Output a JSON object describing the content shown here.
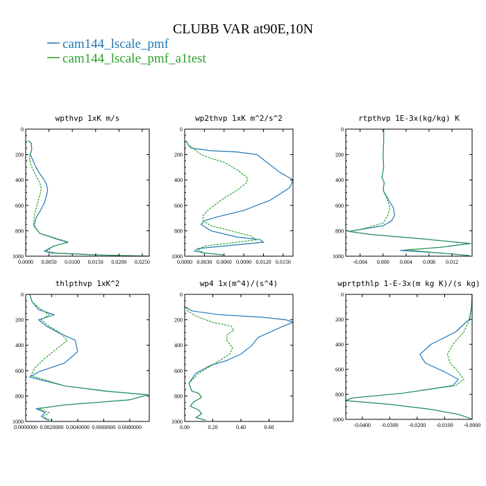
{
  "title": "CLUBB VAR at90E,10N",
  "colors": {
    "blue": "#1f77b4",
    "green": "#2ca02c"
  },
  "legend": [
    {
      "label": "cam144_lscale_pmf",
      "color": "#1f77b4"
    },
    {
      "label": "cam144_lscale_pmf_a1test",
      "color": "#2ca02c"
    }
  ],
  "chart_data": [
    {
      "type": "line",
      "title": "wpthvp  1xK m/s",
      "xlim": [
        0,
        0.0265
      ],
      "ylim": [
        1000,
        0
      ],
      "xticks": [
        0,
        0.005,
        0.01,
        0.015,
        0.02,
        0.025
      ],
      "xtick_labels": [
        "0.0000",
        "0.0050",
        "0.0100",
        "0.0150",
        "0.0200",
        "0.0250"
      ],
      "yticks": [
        0,
        200,
        400,
        600,
        800,
        1000
      ],
      "series": [
        {
          "name": "cam144_lscale_pmf",
          "x": [
            0.0005,
            0.0012,
            0.0013,
            0.001,
            0.0016,
            0.0022,
            0.003,
            0.004,
            0.0045,
            0.0047,
            0.0045,
            0.004,
            0.003,
            0.0022,
            0.0018,
            0.003,
            0.007,
            0.009,
            0.006,
            0.004,
            0.0055,
            0.015,
            0.0265
          ],
          "y": [
            90,
            110,
            160,
            200,
            250,
            300,
            350,
            400,
            440,
            480,
            520,
            580,
            650,
            700,
            760,
            820,
            870,
            890,
            920,
            960,
            975,
            990,
            1000
          ]
        },
        {
          "name": "cam144_lscale_pmf_a1test",
          "x": [
            0.0005,
            0.0012,
            0.0013,
            0.0008,
            0.0011,
            0.0017,
            0.0024,
            0.003,
            0.0033,
            0.0032,
            0.0027,
            0.0021,
            0.0018,
            0.0017,
            0.003,
            0.0075,
            0.0092,
            0.006,
            0.0045,
            0.0065,
            0.016,
            0.0265
          ],
          "y": [
            90,
            110,
            160,
            220,
            280,
            330,
            380,
            420,
            460,
            500,
            560,
            640,
            700,
            760,
            820,
            870,
            890,
            920,
            960,
            975,
            990,
            1000
          ]
        }
      ]
    },
    {
      "type": "line",
      "title": "wp2thvp  1xK m^2/s^2",
      "xlim": [
        0,
        0.0165
      ],
      "ylim": [
        1000,
        0
      ],
      "xticks": [
        0,
        0.003,
        0.006,
        0.009,
        0.012,
        0.015
      ],
      "xtick_labels": [
        "0.0000",
        "0.0030",
        "0.0060",
        "0.0090",
        "0.0120",
        "0.0150"
      ],
      "yticks": [
        0,
        200,
        400,
        600,
        800,
        1000
      ],
      "series": [
        {
          "name": "cam144_lscale_pmf",
          "x": [
            0.0002,
            0.0005,
            0.001,
            0.004,
            0.008,
            0.011,
            0.0125,
            0.0145,
            0.0165,
            0.016,
            0.013,
            0.009,
            0.005,
            0.003,
            0.0025,
            0.004,
            0.008,
            0.0115,
            0.012,
            0.006,
            0.002,
            0.0015,
            0.003,
            0.006
          ],
          "y": [
            90,
            120,
            150,
            170,
            180,
            200,
            260,
            340,
            400,
            460,
            560,
            640,
            690,
            720,
            750,
            800,
            850,
            870,
            890,
            920,
            940,
            960,
            975,
            990
          ]
        },
        {
          "name": "cam144_lscale_pmf_a1test",
          "x": [
            0.0002,
            0.0005,
            0.0015,
            0.0025,
            0.004,
            0.006,
            0.008,
            0.0095,
            0.0095,
            0.008,
            0.0055,
            0.0035,
            0.0028,
            0.0028,
            0.004,
            0.007,
            0.01,
            0.011,
            0.008,
            0.003,
            0.002,
            0.003,
            0.006
          ],
          "y": [
            90,
            120,
            160,
            200,
            230,
            260,
            320,
            380,
            420,
            480,
            560,
            640,
            680,
            720,
            760,
            800,
            840,
            870,
            890,
            920,
            950,
            975,
            990
          ]
        }
      ]
    },
    {
      "type": "line",
      "title": "rtpthvp  1E-3x(kg/kg) K",
      "xlim": [
        -0.0065,
        0.0155
      ],
      "ylim": [
        1000,
        0
      ],
      "xticks": [
        -0.004,
        0,
        0.004,
        0.008,
        0.012
      ],
      "xtick_labels": [
        "-0.004",
        "0.000",
        "0.004",
        "0.008",
        "0.012"
      ],
      "yticks": [
        0,
        200,
        400,
        600,
        800,
        1000
      ],
      "series": [
        {
          "name": "cam144_lscale_pmf",
          "x": [
            0.0001,
            0.0001,
            0.0,
            0.0001,
            -0.0002,
            0.0002,
            0.0,
            0.001,
            0.0018,
            0.002,
            0.0015,
            0.0,
            -0.004,
            -0.006,
            -0.002,
            0.006,
            0.015,
            0.01,
            0.003,
            0.01,
            0.015
          ],
          "y": [
            0,
            100,
            200,
            300,
            380,
            420,
            480,
            560,
            620,
            680,
            720,
            760,
            790,
            805,
            830,
            860,
            900,
            930,
            955,
            975,
            995
          ]
        },
        {
          "name": "cam144_lscale_pmf_a1test",
          "x": [
            0.0001,
            0.0001,
            0.0,
            0.0001,
            -0.0002,
            0.0002,
            0.0,
            0.0008,
            0.0012,
            0.0008,
            0.0,
            -0.004,
            -0.006,
            -0.002,
            0.006,
            0.0155,
            0.01,
            0.004,
            0.01,
            0.015
          ],
          "y": [
            0,
            100,
            200,
            300,
            380,
            420,
            480,
            560,
            620,
            680,
            740,
            790,
            805,
            830,
            860,
            900,
            930,
            950,
            975,
            995
          ]
        }
      ]
    },
    {
      "type": "line",
      "title": "thlpthvp  1xK^2",
      "xlim": [
        0,
        0.0095
      ],
      "ylim": [
        1000,
        0
      ],
      "xticks": [
        0,
        0.002,
        0.004,
        0.006,
        0.008
      ],
      "xtick_labels": [
        "0.0000000",
        "0.0020000",
        "0.0040000",
        "0.0060000",
        "0.0080000"
      ],
      "yticks": [
        0,
        200,
        400,
        600,
        800,
        1000
      ],
      "series": [
        {
          "name": "cam144_lscale_pmf",
          "x": [
            0.0003,
            0.0005,
            0.001,
            0.0022,
            0.001,
            0.0016,
            0.0025,
            0.0038,
            0.004,
            0.003,
            0.001,
            0.0003,
            0.003,
            0.006,
            0.0094,
            0.008,
            0.003,
            0.0008,
            0.0015,
            0.0012,
            0.0015,
            0.0018
          ],
          "y": [
            0,
            60,
            120,
            160,
            200,
            250,
            300,
            360,
            450,
            540,
            610,
            650,
            720,
            760,
            790,
            830,
            870,
            900,
            930,
            960,
            980,
            990
          ]
        },
        {
          "name": "cam144_lscale_pmf_a1test",
          "x": [
            0.0003,
            0.0005,
            0.0012,
            0.0018,
            0.0012,
            0.0018,
            0.0026,
            0.0032,
            0.0025,
            0.0015,
            0.0007,
            0.0004,
            0.003,
            0.007,
            0.0094,
            0.008,
            0.003,
            0.001,
            0.0018,
            0.0014,
            0.0016,
            0.002
          ],
          "y": [
            0,
            60,
            120,
            160,
            200,
            250,
            300,
            360,
            420,
            500,
            580,
            640,
            720,
            770,
            790,
            830,
            870,
            900,
            930,
            960,
            980,
            990
          ]
        }
      ]
    },
    {
      "type": "line",
      "title": "wp4  1x(m^4)/(s^4)",
      "xlim": [
        0,
        0.77
      ],
      "ylim": [
        1000,
        0
      ],
      "xticks": [
        0,
        0.2,
        0.4,
        0.6
      ],
      "xtick_labels": [
        "0.00",
        "0.20",
        "0.40",
        "0.60"
      ],
      "yticks": [
        0,
        200,
        400,
        600,
        800,
        1000
      ],
      "series": [
        {
          "name": "cam144_lscale_pmf",
          "x": [
            0.01,
            0.05,
            0.25,
            0.55,
            0.72,
            0.77,
            0.7,
            0.6,
            0.52,
            0.48,
            0.4,
            0.3,
            0.18,
            0.08,
            0.03,
            0.05,
            0.1,
            0.12,
            0.06,
            0.04,
            0.1,
            0.12,
            0.08,
            0.15
          ],
          "y": [
            100,
            130,
            160,
            180,
            200,
            220,
            250,
            300,
            340,
            400,
            470,
            520,
            560,
            620,
            700,
            760,
            780,
            810,
            850,
            880,
            910,
            940,
            970,
            990
          ]
        },
        {
          "name": "cam144_lscale_pmf_a1test",
          "x": [
            0.01,
            0.02,
            0.08,
            0.2,
            0.33,
            0.35,
            0.3,
            0.3,
            0.34,
            0.32,
            0.22,
            0.1,
            0.03,
            0.05,
            0.1,
            0.12,
            0.06,
            0.04,
            0.1,
            0.12,
            0.08,
            0.15
          ],
          "y": [
            100,
            130,
            170,
            220,
            250,
            280,
            320,
            360,
            420,
            470,
            540,
            620,
            700,
            760,
            780,
            810,
            850,
            880,
            910,
            940,
            970,
            990
          ]
        }
      ]
    },
    {
      "type": "line",
      "title": "wprtpthlp  1-E-3x(m kg K)/(s kg)",
      "xlim": [
        -0.046,
        0
      ],
      "ylim": [
        1000,
        0
      ],
      "xticks": [
        -0.04,
        -0.03,
        -0.02,
        -0.01,
        0
      ],
      "xtick_labels": [
        "-0.0400",
        "-0.0300",
        "-0.0200",
        "-0.0100",
        "-0.0000"
      ],
      "yticks": [
        0,
        200,
        400,
        600,
        800,
        1000
      ],
      "series": [
        {
          "name": "cam144_lscale_pmf",
          "x": [
            0.0,
            -0.0002,
            -0.001,
            -0.006,
            -0.015,
            -0.019,
            -0.017,
            -0.01,
            -0.005,
            -0.007,
            -0.025,
            -0.044,
            -0.046,
            -0.03,
            -0.015,
            -0.005,
            -0.0003
          ],
          "y": [
            0,
            100,
            200,
            300,
            400,
            480,
            550,
            620,
            680,
            730,
            790,
            830,
            850,
            880,
            920,
            960,
            995
          ]
        },
        {
          "name": "cam144_lscale_pmf_a1test",
          "x": [
            0.0,
            -0.0002,
            -0.0008,
            -0.003,
            -0.007,
            -0.009,
            -0.008,
            -0.005,
            -0.003,
            -0.006,
            -0.025,
            -0.044,
            -0.046,
            -0.03,
            -0.015,
            -0.005,
            -0.0003
          ],
          "y": [
            0,
            100,
            200,
            300,
            400,
            480,
            550,
            620,
            680,
            730,
            790,
            830,
            850,
            880,
            920,
            960,
            995
          ]
        }
      ]
    }
  ]
}
